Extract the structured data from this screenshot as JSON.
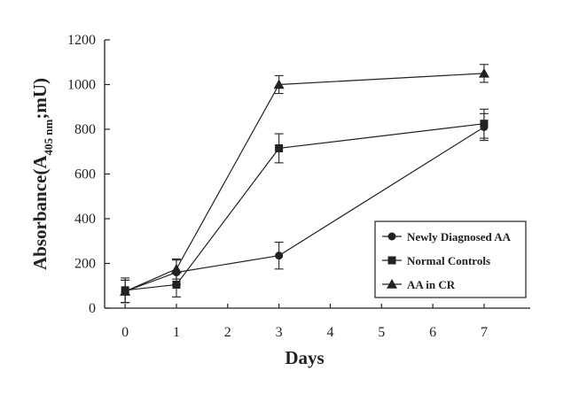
{
  "chart_data": {
    "type": "line",
    "title": "",
    "xlabel": "Days",
    "ylabel_main": "Absorbance(A",
    "ylabel_sub": "405 nm",
    "ylabel_tail": ";mU)",
    "x": [
      0,
      1,
      3,
      7
    ],
    "x_ticks": [
      0,
      1,
      2,
      3,
      4,
      5,
      6,
      7
    ],
    "y_ticks": [
      0,
      200,
      400,
      600,
      800,
      1000,
      1200
    ],
    "xlim": [
      -0.4,
      7.9
    ],
    "ylim": [
      0,
      1200
    ],
    "grid": false,
    "legend_position": "lower-right",
    "series": [
      {
        "name": "Newly Diagnosed AA",
        "marker": "circle",
        "values": [
          75,
          160,
          235,
          810
        ],
        "errors": [
          50,
          55,
          60,
          60
        ]
      },
      {
        "name": "Normal Controls",
        "marker": "square",
        "values": [
          80,
          105,
          715,
          825
        ],
        "errors": [
          55,
          55,
          65,
          65
        ]
      },
      {
        "name": "AA in CR",
        "marker": "triangle",
        "values": [
          75,
          175,
          1000,
          1050
        ],
        "errors": [
          50,
          45,
          40,
          40
        ]
      }
    ]
  }
}
